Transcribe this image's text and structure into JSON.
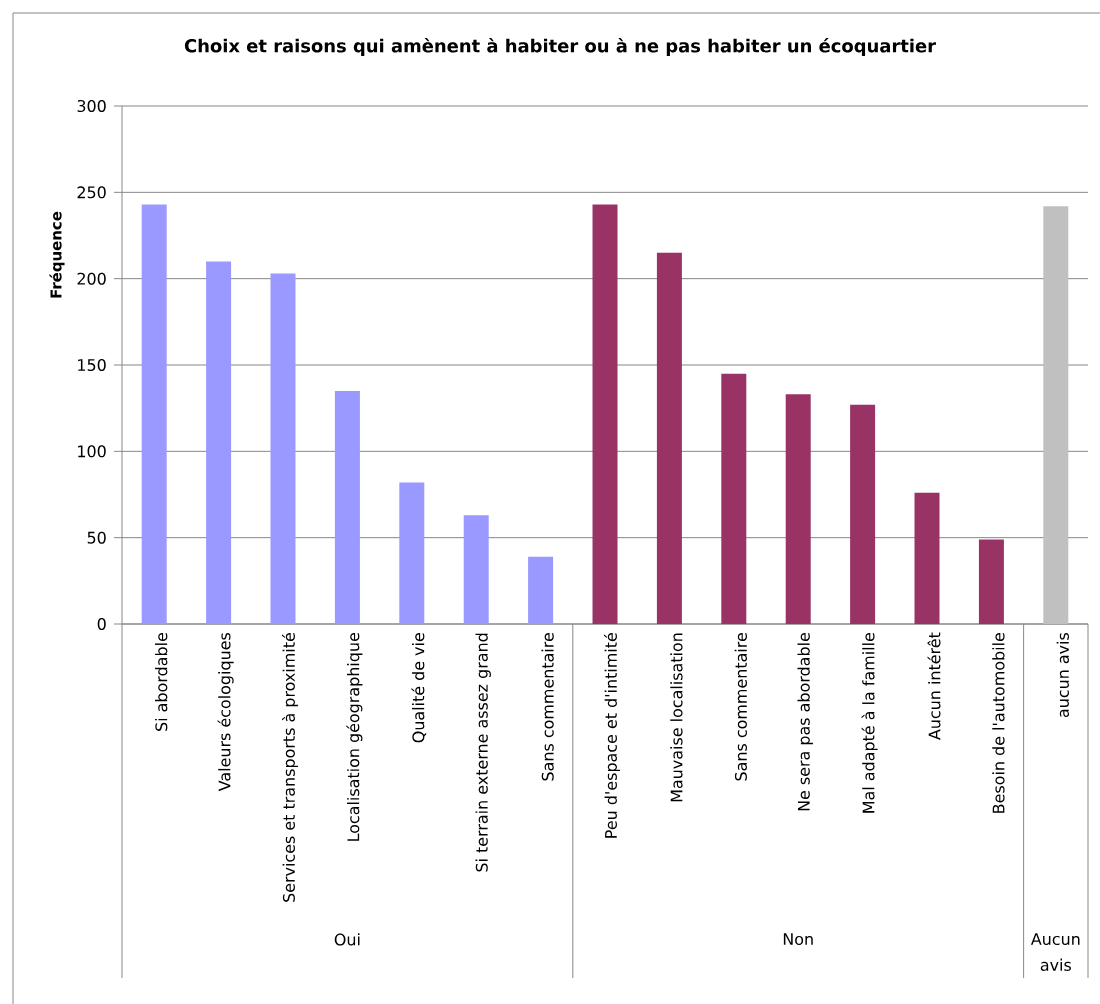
{
  "chart_data": {
    "type": "bar",
    "title": "Choix et raisons qui amènent à habiter ou à ne pas habiter un écoquartier",
    "ylabel": "Fréquence",
    "categories": [
      "Si abordable",
      "Valeurs écologiques",
      "Services et transports à proximité",
      "Localisation géographique",
      "Qualité de vie",
      "Si terrain externe assez grand",
      "Sans commentaire",
      "Peu d'espace et d'intimité",
      "Mauvaise localisation",
      "Sans commentaire",
      "Ne sera pas abordable",
      "Mal adapté à la famille",
      "Aucun intérêt",
      "Besoin de l'automobile",
      "aucun avis"
    ],
    "series": [
      {
        "color": "#9999ff",
        "values": [
          243,
          210,
          203,
          135,
          82,
          63,
          39,
          null,
          null,
          null,
          null,
          null,
          null,
          null,
          null
        ]
      },
      {
        "color": "#993366",
        "values": [
          null,
          null,
          null,
          null,
          null,
          null,
          null,
          243,
          215,
          145,
          133,
          127,
          76,
          49,
          null
        ]
      },
      {
        "color": "#c0c0c0",
        "values": [
          null,
          null,
          null,
          null,
          null,
          null,
          null,
          null,
          null,
          null,
          null,
          null,
          null,
          null,
          242
        ]
      }
    ],
    "annotations": [
      "Oui",
      "Non",
      "Aucun avis"
    ],
    "ylim": [
      0,
      300
    ],
    "yticks": [
      0,
      50,
      100,
      150,
      200,
      250,
      300
    ],
    "grid": "y"
  }
}
